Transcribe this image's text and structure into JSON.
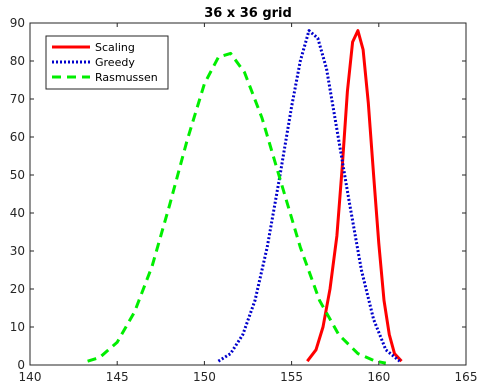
{
  "chart_data": {
    "type": "line",
    "title": "36 x 36 grid",
    "xlabel": "",
    "ylabel": "",
    "xlim": [
      140,
      165
    ],
    "ylim": [
      0,
      90
    ],
    "xticks": [
      140,
      145,
      150,
      155,
      160,
      165
    ],
    "yticks": [
      0,
      10,
      20,
      30,
      40,
      50,
      60,
      70,
      80,
      90
    ],
    "grid": false,
    "legend_position": "top-left",
    "series": [
      {
        "name": "Scaling",
        "color": "#ff0000",
        "style": "solid",
        "x": [
          155.9,
          156.4,
          156.8,
          157.2,
          157.6,
          157.9,
          158.2,
          158.5,
          158.8,
          159.1,
          159.4,
          159.7,
          160.0,
          160.3,
          160.6,
          160.9,
          161.3
        ],
        "y": [
          1,
          4,
          10,
          20,
          34,
          52,
          72,
          85,
          88,
          83,
          69,
          50,
          32,
          17,
          8,
          3,
          1
        ]
      },
      {
        "name": "Greedy",
        "color": "#0000cc",
        "style": "dotted",
        "x": [
          150.8,
          151.5,
          152.2,
          152.9,
          153.6,
          154.3,
          155.0,
          155.5,
          156.0,
          156.5,
          157.0,
          157.6,
          158.3,
          159.0,
          159.7,
          160.4,
          161.2
        ],
        "y": [
          1,
          3,
          8,
          17,
          31,
          49,
          68,
          80,
          88,
          86,
          78,
          62,
          43,
          25,
          12,
          4,
          1
        ]
      },
      {
        "name": "Rasmussen",
        "color": "#00ee00",
        "style": "dashed",
        "x": [
          143.3,
          144.0,
          145.0,
          146.0,
          147.0,
          148.0,
          149.0,
          150.0,
          150.8,
          151.5,
          152.3,
          153.3,
          154.4,
          155.5,
          156.6,
          157.7,
          158.8,
          159.8,
          160.4
        ],
        "y": [
          1,
          2,
          6,
          14,
          26,
          42,
          59,
          74,
          81,
          82,
          77,
          65,
          48,
          31,
          17,
          8,
          3,
          1,
          0.5
        ]
      }
    ]
  }
}
